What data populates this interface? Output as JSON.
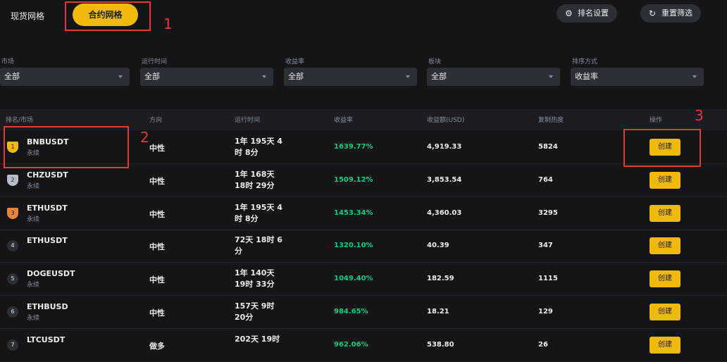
{
  "tabs": [
    "现货网格",
    "合约网格"
  ],
  "buttons": [
    "排名设置",
    "重置筛选"
  ],
  "annotations": [
    "1",
    "2",
    "3"
  ],
  "filters": [
    {
      "label": "市场",
      "value": "全部"
    },
    {
      "label": "运行时间",
      "value": "全部"
    },
    {
      "label": "收益率",
      "value": "全部"
    },
    {
      "label": "板块",
      "value": "全部"
    },
    {
      "label": "排序方式",
      "value": "收益率"
    }
  ],
  "table": {
    "headers": [
      "排名/市场",
      "方向",
      "运行时间",
      "收益率",
      "收益额(USD)",
      "复制热度",
      "操作"
    ],
    "rows": [
      {
        "rank": "1",
        "symbol": "BNBUSDT",
        "type": "永续",
        "direction": "中性",
        "runtime": "1年 195天 4时 8分",
        "roi": "1639.77%",
        "pnl": "4,919.33",
        "popularity": "5824",
        "action": "创建"
      },
      {
        "rank": "2",
        "symbol": "CHZUSDT",
        "type": "永续",
        "direction": "中性",
        "runtime": "1年 168天 18时 29分",
        "roi": "1509.12%",
        "pnl": "3,853.54",
        "popularity": "764",
        "action": "创建"
      },
      {
        "rank": "3",
        "symbol": "ETHUSDT",
        "type": "永续",
        "direction": "中性",
        "runtime": "1年 195天 4时 8分",
        "roi": "1453.34%",
        "pnl": "4,360.03",
        "popularity": "3295",
        "action": "创建"
      },
      {
        "rank": "4",
        "symbol": "ETHUSDT",
        "direction": "中性",
        "runtime": "72天 18时 6分",
        "roi": "1320.10%",
        "pnl": "40.39",
        "popularity": "347",
        "action": "创建"
      },
      {
        "rank": "5",
        "symbol": "DOGEUSDT",
        "type": "永续",
        "direction": "中性",
        "runtime": "1年 140天 19时 33分",
        "roi": "1049.40%",
        "pnl": "182.59",
        "popularity": "1115",
        "action": "创建"
      },
      {
        "rank": "6",
        "symbol": "ETHBUSD",
        "type": "永续",
        "direction": "中性",
        "runtime": "157天 9时 20分",
        "roi": "984.65%",
        "pnl": "18.21",
        "popularity": "129",
        "action": "创建"
      },
      {
        "rank": "7",
        "symbol": "LTCUSDT",
        "direction": "做多",
        "runtime": "202天 19时",
        "roi": "962.06%",
        "pnl": "538.80",
        "popularity": "26",
        "action": "创建"
      }
    ]
  }
}
